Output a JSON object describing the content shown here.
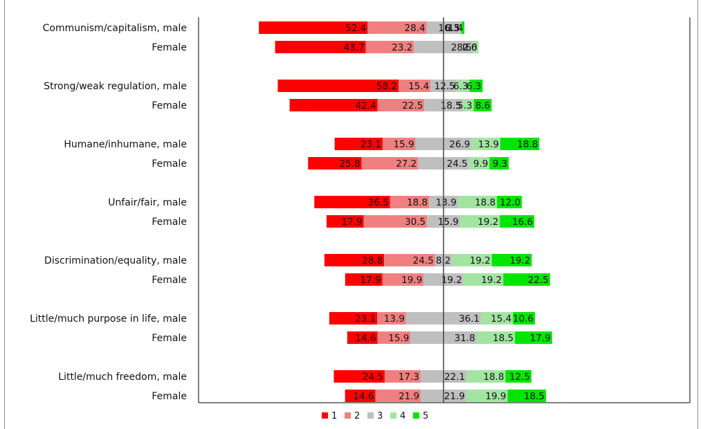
{
  "chart_data": {
    "type": "bar",
    "orientation": "horizontal",
    "stacked": "diverging",
    "categories": [
      "Communism/capitalism, male",
      "Female",
      "Strong/weak regulation, male",
      "Female",
      "Humane/inhumane, male",
      "Female",
      "Unfair/fair, male",
      "Female",
      "Discrimination/equality, male",
      "Female",
      "Little/much purpose in life, male",
      "Female",
      "Little/much freedom, male",
      "Female"
    ],
    "series": [
      {
        "name": "1",
        "color": "#ff0000",
        "values": [
          52.4,
          43.7,
          58.2,
          42.4,
          23.1,
          25.8,
          36.5,
          17.9,
          28.8,
          17.9,
          23.1,
          14.6,
          24.5,
          14.6
        ],
        "labels": [
          "52.4",
          "43.7",
          "58.2",
          "42.4",
          "23.1",
          "25.8",
          "36.5",
          "17.9",
          "28.8",
          "17.9",
          "23.1",
          "14.6",
          "24.5",
          "14.6"
        ]
      },
      {
        "name": "2",
        "color": "#f08080",
        "values": [
          28.4,
          23.2,
          15.4,
          22.5,
          15.9,
          27.2,
          18.8,
          30.5,
          24.5,
          19.9,
          13.9,
          15.9,
          17.3,
          21.9
        ],
        "labels": [
          "28.4",
          "23.2",
          "15.4",
          "22.5",
          "15.9",
          "27.2",
          "18.8",
          "30.5",
          "24.5",
          "19.9",
          "13.9",
          "15.9",
          "17.3",
          "21.9"
        ]
      },
      {
        "name": "3",
        "color": "#bfbfbf",
        "values": [
          16.3,
          28.5,
          12.5,
          18.5,
          26.9,
          24.5,
          13.9,
          15.9,
          8.2,
          19.2,
          36.1,
          31.8,
          22.1,
          21.9
        ],
        "labels": [
          "16.3",
          "28.5",
          "12.5",
          "18.5",
          "26.9",
          "24.5",
          "13.9",
          "15.9",
          "8.2",
          "19.2",
          "36.1",
          "31.8",
          "22.1",
          "21.9"
        ]
      },
      {
        "name": "4",
        "color": "#a3e4a3",
        "values": [
          0.5,
          2.6,
          6.3,
          5.3,
          13.9,
          9.9,
          18.8,
          19.2,
          19.2,
          19.2,
          15.4,
          18.5,
          18.8,
          19.9
        ],
        "labels": [
          "0.5",
          "2.6",
          "6.3",
          "5.3",
          "13.9",
          "9.9",
          "18.8",
          "19.2",
          "19.2",
          "19.2",
          "15.4",
          "18.5",
          "18.8",
          "19.9"
        ]
      },
      {
        "name": "5",
        "color": "#00e600",
        "values": [
          1.4,
          0.0,
          6.3,
          8.6,
          18.8,
          9.3,
          12.0,
          16.6,
          19.2,
          22.5,
          10.6,
          17.9,
          12.5,
          18.5
        ],
        "labels": [
          "1.4",
          "0.0",
          "6.3",
          "8.6",
          "18.8",
          "9.3",
          "12.0",
          "16.6",
          "19.2",
          "22.5",
          "10.6",
          "17.9",
          "12.5",
          "18.5"
        ]
      }
    ],
    "center": "middle of category 3",
    "gridlines": false,
    "legend_position": "bottom-center",
    "legend": [
      "1",
      "2",
      "3",
      "4",
      "5"
    ]
  }
}
